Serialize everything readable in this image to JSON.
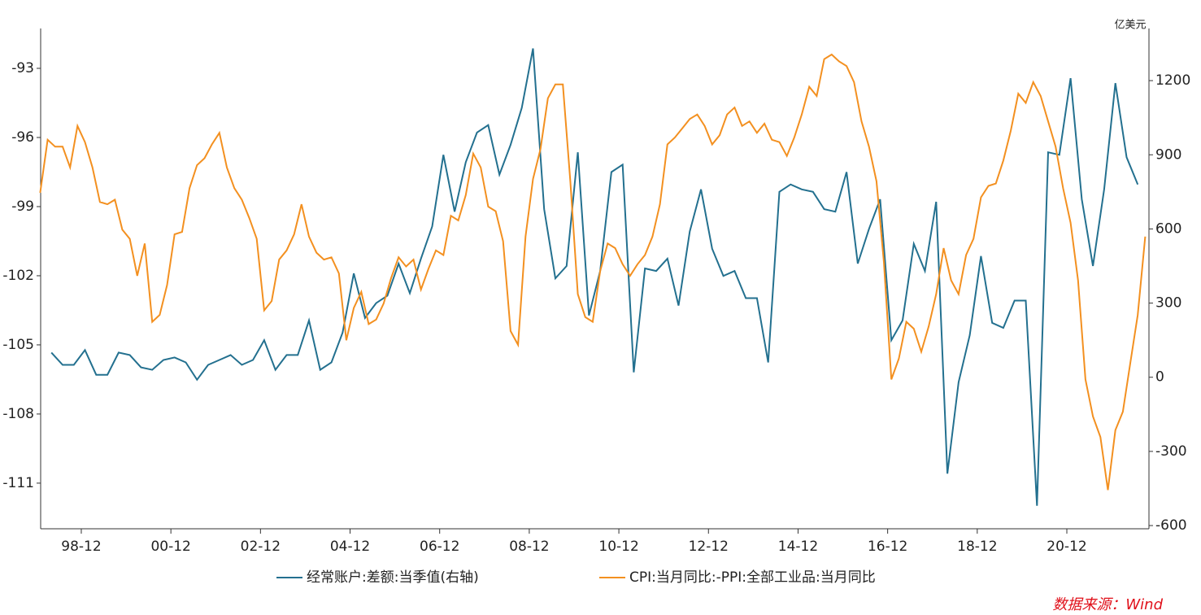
{
  "chart_data": {
    "type": "line",
    "y2label": "亿美元",
    "source": "数据来源：Wind",
    "legend": "bottom",
    "xlim": [
      1998.01,
      2022.75
    ],
    "xticks": [
      {
        "value": 1998.917,
        "label": "98-12"
      },
      {
        "value": 2000.917,
        "label": "00-12"
      },
      {
        "value": 2002.917,
        "label": "02-12"
      },
      {
        "value": 2004.917,
        "label": "04-12"
      },
      {
        "value": 2006.917,
        "label": "06-12"
      },
      {
        "value": 2008.917,
        "label": "08-12"
      },
      {
        "value": 2010.917,
        "label": "10-12"
      },
      {
        "value": 2012.917,
        "label": "12-12"
      },
      {
        "value": 2014.917,
        "label": "14-12"
      },
      {
        "value": 2016.917,
        "label": "16-12"
      },
      {
        "value": 2018.917,
        "label": "18-12"
      },
      {
        "value": 2020.917,
        "label": "20-12"
      }
    ],
    "ylim": [
      -112.98,
      -91.27
    ],
    "yticks": [
      -111,
      -108,
      -105,
      -102,
      -99,
      -96,
      -93
    ],
    "y2lim": [
      -613,
      1411
    ],
    "y2ticks": [
      -600,
      -300,
      0,
      300,
      600,
      900,
      1200
    ],
    "series": [
      {
        "name": "经常账户:差额:当季值(右轴)",
        "color": "#23708f",
        "axis": "y2",
        "x": [
          1998.25,
          1998.5,
          1998.75,
          1999,
          1999.25,
          1999.5,
          1999.75,
          2000,
          2000.25,
          2000.5,
          2000.75,
          2001,
          2001.25,
          2001.5,
          2001.75,
          2002,
          2002.25,
          2002.5,
          2002.75,
          2003,
          2003.25,
          2003.5,
          2003.75,
          2004,
          2004.25,
          2004.5,
          2004.75,
          2005,
          2005.25,
          2005.5,
          2005.75,
          2006,
          2006.25,
          2006.5,
          2006.75,
          2007,
          2007.25,
          2007.5,
          2007.75,
          2008,
          2008.25,
          2008.5,
          2008.75,
          2009,
          2009.25,
          2009.5,
          2009.75,
          2010,
          2010.25,
          2010.5,
          2010.75,
          2011,
          2011.25,
          2011.5,
          2011.75,
          2012,
          2012.25,
          2012.5,
          2012.75,
          2013,
          2013.25,
          2013.5,
          2013.75,
          2014,
          2014.25,
          2014.5,
          2014.75,
          2015,
          2015.25,
          2015.5,
          2015.75,
          2016,
          2016.25,
          2016.5,
          2016.75,
          2017,
          2017.25,
          2017.5,
          2017.75,
          2018,
          2018.25,
          2018.5,
          2018.75,
          2019,
          2019.25,
          2019.5,
          2019.75,
          2020,
          2020.25,
          2020.5,
          2020.75,
          2021,
          2021.25,
          2021.5,
          2021.75,
          2022,
          2022.25,
          2022.5
        ],
        "values": [
          100,
          50,
          50,
          110,
          10,
          10,
          100,
          90,
          40,
          30,
          70,
          80,
          60,
          -10,
          50,
          70,
          90,
          50,
          70,
          150,
          30,
          90,
          90,
          230,
          30,
          60,
          180,
          420,
          240,
          300,
          330,
          460,
          340,
          480,
          610,
          900,
          670,
          870,
          990,
          1020,
          820,
          940,
          1090,
          1330,
          680,
          400,
          450,
          910,
          250,
          430,
          830,
          860,
          20,
          440,
          430,
          480,
          290,
          590,
          760,
          520,
          410,
          430,
          320,
          320,
          60,
          750,
          780,
          760,
          750,
          680,
          670,
          830,
          460,
          600,
          720,
          150,
          230,
          540,
          430,
          710,
          -390,
          -20,
          170,
          490,
          220,
          200,
          310,
          310,
          -520,
          910,
          900,
          1210,
          720,
          450,
          760,
          1190,
          890,
          780
        ]
      },
      {
        "name": "CPI:当月同比:-PPI:全部工业品:当月同比",
        "color": "#f39020",
        "x": [
          1998,
          1998.167,
          1998.333,
          1998.5,
          1998.667,
          1998.833,
          1999,
          1999.167,
          1999.333,
          1999.5,
          1999.667,
          1999.833,
          2000,
          2000.167,
          2000.333,
          2000.5,
          2000.667,
          2000.833,
          2001,
          2001.167,
          2001.333,
          2001.5,
          2001.667,
          2001.833,
          2002,
          2002.167,
          2002.333,
          2002.5,
          2002.667,
          2002.833,
          2003,
          2003.167,
          2003.333,
          2003.5,
          2003.667,
          2003.833,
          2004,
          2004.167,
          2004.333,
          2004.5,
          2004.667,
          2004.833,
          2005,
          2005.167,
          2005.333,
          2005.5,
          2005.667,
          2005.833,
          2006,
          2006.167,
          2006.333,
          2006.5,
          2006.667,
          2006.833,
          2007,
          2007.167,
          2007.333,
          2007.5,
          2007.667,
          2007.833,
          2008,
          2008.167,
          2008.333,
          2008.5,
          2008.667,
          2008.833,
          2009,
          2009.167,
          2009.333,
          2009.5,
          2009.667,
          2009.833,
          2010,
          2010.167,
          2010.333,
          2010.5,
          2010.667,
          2010.833,
          2011,
          2011.167,
          2011.333,
          2011.5,
          2011.667,
          2011.833,
          2012,
          2012.167,
          2012.333,
          2012.5,
          2012.667,
          2012.833,
          2013,
          2013.167,
          2013.333,
          2013.5,
          2013.667,
          2013.833,
          2014,
          2014.167,
          2014.333,
          2014.5,
          2014.667,
          2014.833,
          2015,
          2015.167,
          2015.333,
          2015.5,
          2015.667,
          2015.833,
          2016,
          2016.167,
          2016.333,
          2016.5,
          2016.667,
          2016.833,
          2017,
          2017.167,
          2017.333,
          2017.5,
          2017.667,
          2017.833,
          2018,
          2018.167,
          2018.333,
          2018.5,
          2018.667,
          2018.833,
          2019,
          2019.167,
          2019.333,
          2019.5,
          2019.667,
          2019.833,
          2020,
          2020.167,
          2020.333,
          2020.5,
          2020.667,
          2020.833,
          2021,
          2021.167,
          2021.333,
          2021.5,
          2021.667,
          2021.833,
          2022,
          2022.167,
          2022.333,
          2022.5,
          2022.667
        ],
        "values": [
          -98.4,
          -96.1,
          -96.4,
          -96.4,
          -97.3,
          -95.5,
          -96.2,
          -97.3,
          -98.8,
          -98.9,
          -98.7,
          -100.0,
          -100.4,
          -102.0,
          -100.6,
          -104.0,
          -103.7,
          -102.4,
          -100.2,
          -100.1,
          -98.2,
          -97.2,
          -96.9,
          -96.3,
          -95.8,
          -97.3,
          -98.2,
          -98.7,
          -99.5,
          -100.4,
          -103.5,
          -103.1,
          -101.3,
          -100.9,
          -100.2,
          -98.9,
          -100.3,
          -101.0,
          -101.3,
          -101.2,
          -101.9,
          -104.8,
          -103.4,
          -102.7,
          -104.1,
          -103.9,
          -103.2,
          -102.1,
          -101.2,
          -101.6,
          -101.3,
          -102.6,
          -101.7,
          -100.9,
          -101.1,
          -99.4,
          -99.6,
          -98.5,
          -96.7,
          -97.3,
          -99.0,
          -99.2,
          -100.5,
          -104.4,
          -105.0,
          -100.3,
          -97.8,
          -96.5,
          -94.3,
          -93.7,
          -93.7,
          -97.9,
          -102.8,
          -103.8,
          -104.0,
          -101.8,
          -100.6,
          -100.8,
          -101.5,
          -102.0,
          -101.5,
          -101.1,
          -100.3,
          -98.9,
          -96.3,
          -96.0,
          -95.6,
          -95.2,
          -95.0,
          -95.5,
          -96.3,
          -95.9,
          -95.0,
          -94.7,
          -95.5,
          -95.3,
          -95.8,
          -95.4,
          -96.1,
          -96.2,
          -96.8,
          -96.0,
          -95.0,
          -93.8,
          -94.2,
          -92.6,
          -92.4,
          -92.7,
          -92.9,
          -93.6,
          -95.3,
          -96.4,
          -97.9,
          -101.4,
          -106.5,
          -105.6,
          -104.0,
          -104.3,
          -105.3,
          -104.2,
          -102.8,
          -100.8,
          -102.2,
          -102.8,
          -101.1,
          -100.4,
          -98.6,
          -98.1,
          -98.0,
          -97.0,
          -95.7,
          -94.1,
          -94.5,
          -93.6,
          -94.2,
          -95.3,
          -96.4,
          -98.2,
          -99.7,
          -102.2,
          -106.5,
          -108.1,
          -109.0,
          -111.3,
          -108.7,
          -107.9,
          -105.8,
          -103.7,
          -100.3
        ]
      }
    ]
  }
}
